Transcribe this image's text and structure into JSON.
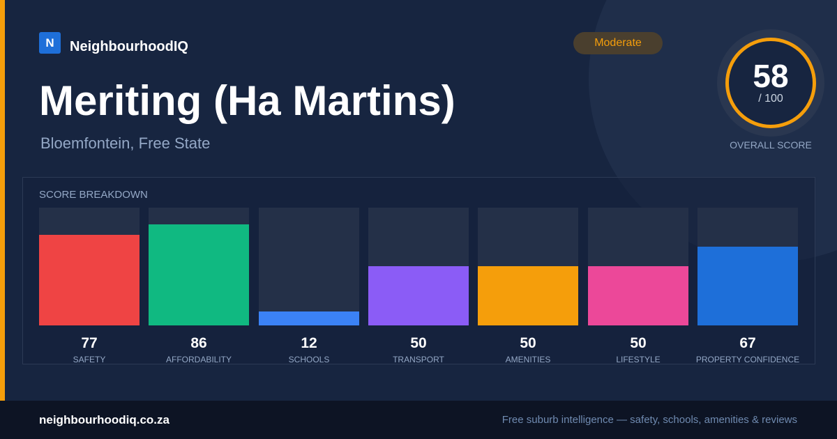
{
  "brand": {
    "logo_letter": "N",
    "name": "NeighbourhoodIQ",
    "accent_color": "#f59e0b",
    "logo_color": "#1e6fd9"
  },
  "badge": {
    "label": "Moderate",
    "color": "#f59e0b"
  },
  "suburb": {
    "name": "Meriting (Ha Martins)",
    "location": "Bloemfontein, Free State"
  },
  "overall": {
    "score": "58",
    "max": "/ 100",
    "label": "OVERALL SCORE",
    "ring_color": "#f59e0b"
  },
  "breakdown": {
    "title": "SCORE BREAKDOWN",
    "max_score": 100,
    "items": [
      {
        "label": "SAFETY",
        "value": 77,
        "display": "77",
        "color": "#ef4444"
      },
      {
        "label": "AFFORDABILITY",
        "value": 86,
        "display": "86",
        "color": "#10b981"
      },
      {
        "label": "SCHOOLS",
        "value": 12,
        "display": "12",
        "color": "#3b82f6"
      },
      {
        "label": "TRANSPORT",
        "value": 50,
        "display": "50",
        "color": "#8b5cf6"
      },
      {
        "label": "AMENITIES",
        "value": 50,
        "display": "50",
        "color": "#f59e0b"
      },
      {
        "label": "LIFESTYLE",
        "value": 50,
        "display": "50",
        "color": "#ec4899"
      },
      {
        "label": "PROPERTY CONFIDENCE",
        "value": 67,
        "display": "67",
        "color": "#1e6fd9"
      }
    ]
  },
  "footer": {
    "url": "neighbourhoodiq.co.za",
    "tagline": "Free suburb intelligence — safety, schools, amenities & reviews"
  }
}
